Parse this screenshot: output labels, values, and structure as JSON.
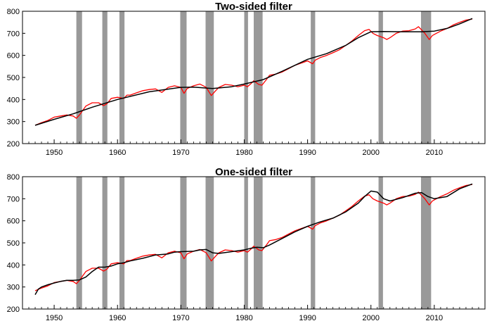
{
  "chart_data": [
    {
      "type": "line",
      "title": "Two-sided filter",
      "xlabel": "",
      "ylabel": "",
      "xlim": [
        1945,
        2018
      ],
      "ylim": [
        200,
        800
      ],
      "x_ticks": [
        1950,
        1960,
        1970,
        1980,
        1990,
        2000,
        2010
      ],
      "y_ticks": [
        200,
        300,
        400,
        500,
        600,
        700,
        800
      ],
      "grid": false,
      "recessions": [
        [
          1953.5,
          1954.4
        ],
        [
          1957.6,
          1958.4
        ],
        [
          1960.3,
          1961.1
        ],
        [
          1969.9,
          1970.9
        ],
        [
          1973.9,
          1975.2
        ],
        [
          1980.0,
          1980.6
        ],
        [
          1981.5,
          1982.9
        ],
        [
          1990.5,
          1991.2
        ],
        [
          2001.2,
          2001.9
        ],
        [
          2007.9,
          2009.5
        ]
      ],
      "recession_color": "#999999",
      "series": [
        {
          "color": "#ff0000",
          "x": [
            1947,
            1948,
            1949,
            1950,
            1951,
            1952,
            1953,
            1953.5,
            1954,
            1955,
            1956,
            1957,
            1957.8,
            1958.3,
            1959,
            1960,
            1961,
            1961.5,
            1962,
            1963,
            1964,
            1965,
            1966,
            1967,
            1968,
            1969,
            1970,
            1970.5,
            1971,
            1972,
            1973,
            1974,
            1974.8,
            1975.5,
            1976,
            1977,
            1978,
            1979,
            1980,
            1980.5,
            1981,
            1981.5,
            1982.3,
            1982.8,
            1983.5,
            1984,
            1985,
            1986,
            1987,
            1988,
            1989,
            1990,
            1990.8,
            1991.2,
            1992,
            1993,
            1994,
            1995,
            1996,
            1997,
            1998,
            1999,
            1999.7,
            2000.3,
            2001,
            2001.5,
            2002,
            2002.5,
            2003,
            2004,
            2005,
            2006,
            2007,
            2007.5,
            2008,
            2008.5,
            2009.2,
            2009.7,
            2010,
            2011,
            2012,
            2013,
            2014,
            2015,
            2016
          ],
          "y": [
            283,
            295,
            305,
            320,
            325,
            330,
            325,
            315,
            330,
            370,
            385,
            385,
            372,
            380,
            405,
            410,
            405,
            420,
            420,
            430,
            440,
            445,
            448,
            432,
            455,
            462,
            455,
            428,
            450,
            462,
            470,
            455,
            418,
            440,
            455,
            468,
            465,
            458,
            465,
            458,
            470,
            485,
            468,
            465,
            490,
            510,
            515,
            525,
            540,
            555,
            565,
            575,
            562,
            578,
            590,
            600,
            612,
            625,
            645,
            665,
            690,
            712,
            718,
            700,
            690,
            685,
            680,
            672,
            680,
            700,
            710,
            712,
            720,
            730,
            715,
            700,
            672,
            690,
            695,
            710,
            722,
            738,
            750,
            760,
            765
          ]
        },
        {
          "color": "#000000",
          "x": [
            1947,
            1950,
            1953,
            1956,
            1960,
            1965,
            1970,
            1972,
            1975,
            1978,
            1980,
            1983,
            1986,
            1990,
            1993,
            1996,
            1998,
            2000,
            2002,
            2005,
            2008,
            2010,
            2012,
            2014,
            2016
          ],
          "y": [
            283,
            310,
            335,
            365,
            400,
            435,
            455,
            456,
            450,
            458,
            470,
            490,
            528,
            582,
            608,
            645,
            680,
            707,
            708,
            707,
            707,
            710,
            722,
            743,
            767
          ]
        }
      ]
    },
    {
      "type": "line",
      "title": "One-sided filter",
      "xlabel": "",
      "ylabel": "",
      "xlim": [
        1945,
        2018
      ],
      "ylim": [
        200,
        800
      ],
      "x_ticks": [
        1950,
        1960,
        1970,
        1980,
        1990,
        2000,
        2010
      ],
      "y_ticks": [
        200,
        300,
        400,
        500,
        600,
        700,
        800
      ],
      "grid": false,
      "recessions": [
        [
          1953.5,
          1954.4
        ],
        [
          1957.6,
          1958.4
        ],
        [
          1960.3,
          1961.1
        ],
        [
          1969.9,
          1970.9
        ],
        [
          1973.9,
          1975.2
        ],
        [
          1980.0,
          1980.6
        ],
        [
          1981.5,
          1982.9
        ],
        [
          1990.5,
          1991.2
        ],
        [
          2001.2,
          2001.9
        ],
        [
          2007.9,
          2009.5
        ]
      ],
      "recession_color": "#999999",
      "series": [
        {
          "color": "#ff0000",
          "x": [
            1947,
            1948,
            1949,
            1950,
            1951,
            1952,
            1953,
            1953.5,
            1954,
            1955,
            1956,
            1957,
            1957.8,
            1958.3,
            1959,
            1960,
            1961,
            1961.5,
            1962,
            1963,
            1964,
            1965,
            1966,
            1967,
            1968,
            1969,
            1970,
            1970.5,
            1971,
            1972,
            1973,
            1974,
            1974.8,
            1975.5,
            1976,
            1977,
            1978,
            1979,
            1980,
            1980.5,
            1981,
            1981.5,
            1982.3,
            1982.8,
            1983.5,
            1984,
            1985,
            1986,
            1987,
            1988,
            1989,
            1990,
            1990.8,
            1991.2,
            1992,
            1993,
            1994,
            1995,
            1996,
            1997,
            1998,
            1999,
            1999.7,
            2000.3,
            2001,
            2001.5,
            2002,
            2002.5,
            2003,
            2004,
            2005,
            2006,
            2007,
            2007.5,
            2008,
            2008.5,
            2009.2,
            2009.7,
            2010,
            2011,
            2012,
            2013,
            2014,
            2015,
            2016
          ],
          "y": [
            283,
            295,
            305,
            320,
            325,
            330,
            325,
            315,
            330,
            370,
            385,
            385,
            372,
            380,
            405,
            410,
            405,
            420,
            420,
            430,
            440,
            445,
            448,
            432,
            455,
            462,
            455,
            428,
            450,
            462,
            470,
            455,
            418,
            440,
            455,
            468,
            465,
            458,
            465,
            458,
            470,
            485,
            468,
            465,
            490,
            510,
            515,
            525,
            540,
            555,
            565,
            575,
            562,
            578,
            590,
            600,
            612,
            625,
            645,
            665,
            690,
            712,
            718,
            700,
            690,
            685,
            680,
            672,
            680,
            700,
            710,
            712,
            720,
            730,
            715,
            700,
            672,
            690,
            695,
            710,
            722,
            738,
            750,
            760,
            765
          ]
        },
        {
          "color": "#000000",
          "x": [
            1947,
            1947.5,
            1948,
            1949,
            1950,
            1951,
            1952,
            1953,
            1954,
            1955,
            1956,
            1957,
            1958,
            1959,
            1960,
            1961,
            1962,
            1964,
            1966,
            1968,
            1969,
            1970,
            1972,
            1973,
            1974,
            1975,
            1976,
            1978,
            1980,
            1981,
            1982,
            1983,
            1984,
            1986,
            1988,
            1990,
            1992,
            1994,
            1996,
            1998,
            1999,
            2000,
            2001,
            2002,
            2003,
            2005,
            2007,
            2008,
            2009,
            2010,
            2012,
            2014,
            2016
          ],
          "y": [
            265,
            290,
            300,
            310,
            318,
            325,
            330,
            330,
            332,
            345,
            370,
            390,
            390,
            395,
            405,
            410,
            418,
            430,
            445,
            450,
            458,
            460,
            462,
            468,
            470,
            455,
            452,
            460,
            468,
            475,
            480,
            478,
            490,
            520,
            550,
            575,
            595,
            612,
            640,
            680,
            710,
            735,
            730,
            700,
            690,
            705,
            725,
            728,
            710,
            700,
            710,
            745,
            767
          ]
        }
      ]
    }
  ]
}
